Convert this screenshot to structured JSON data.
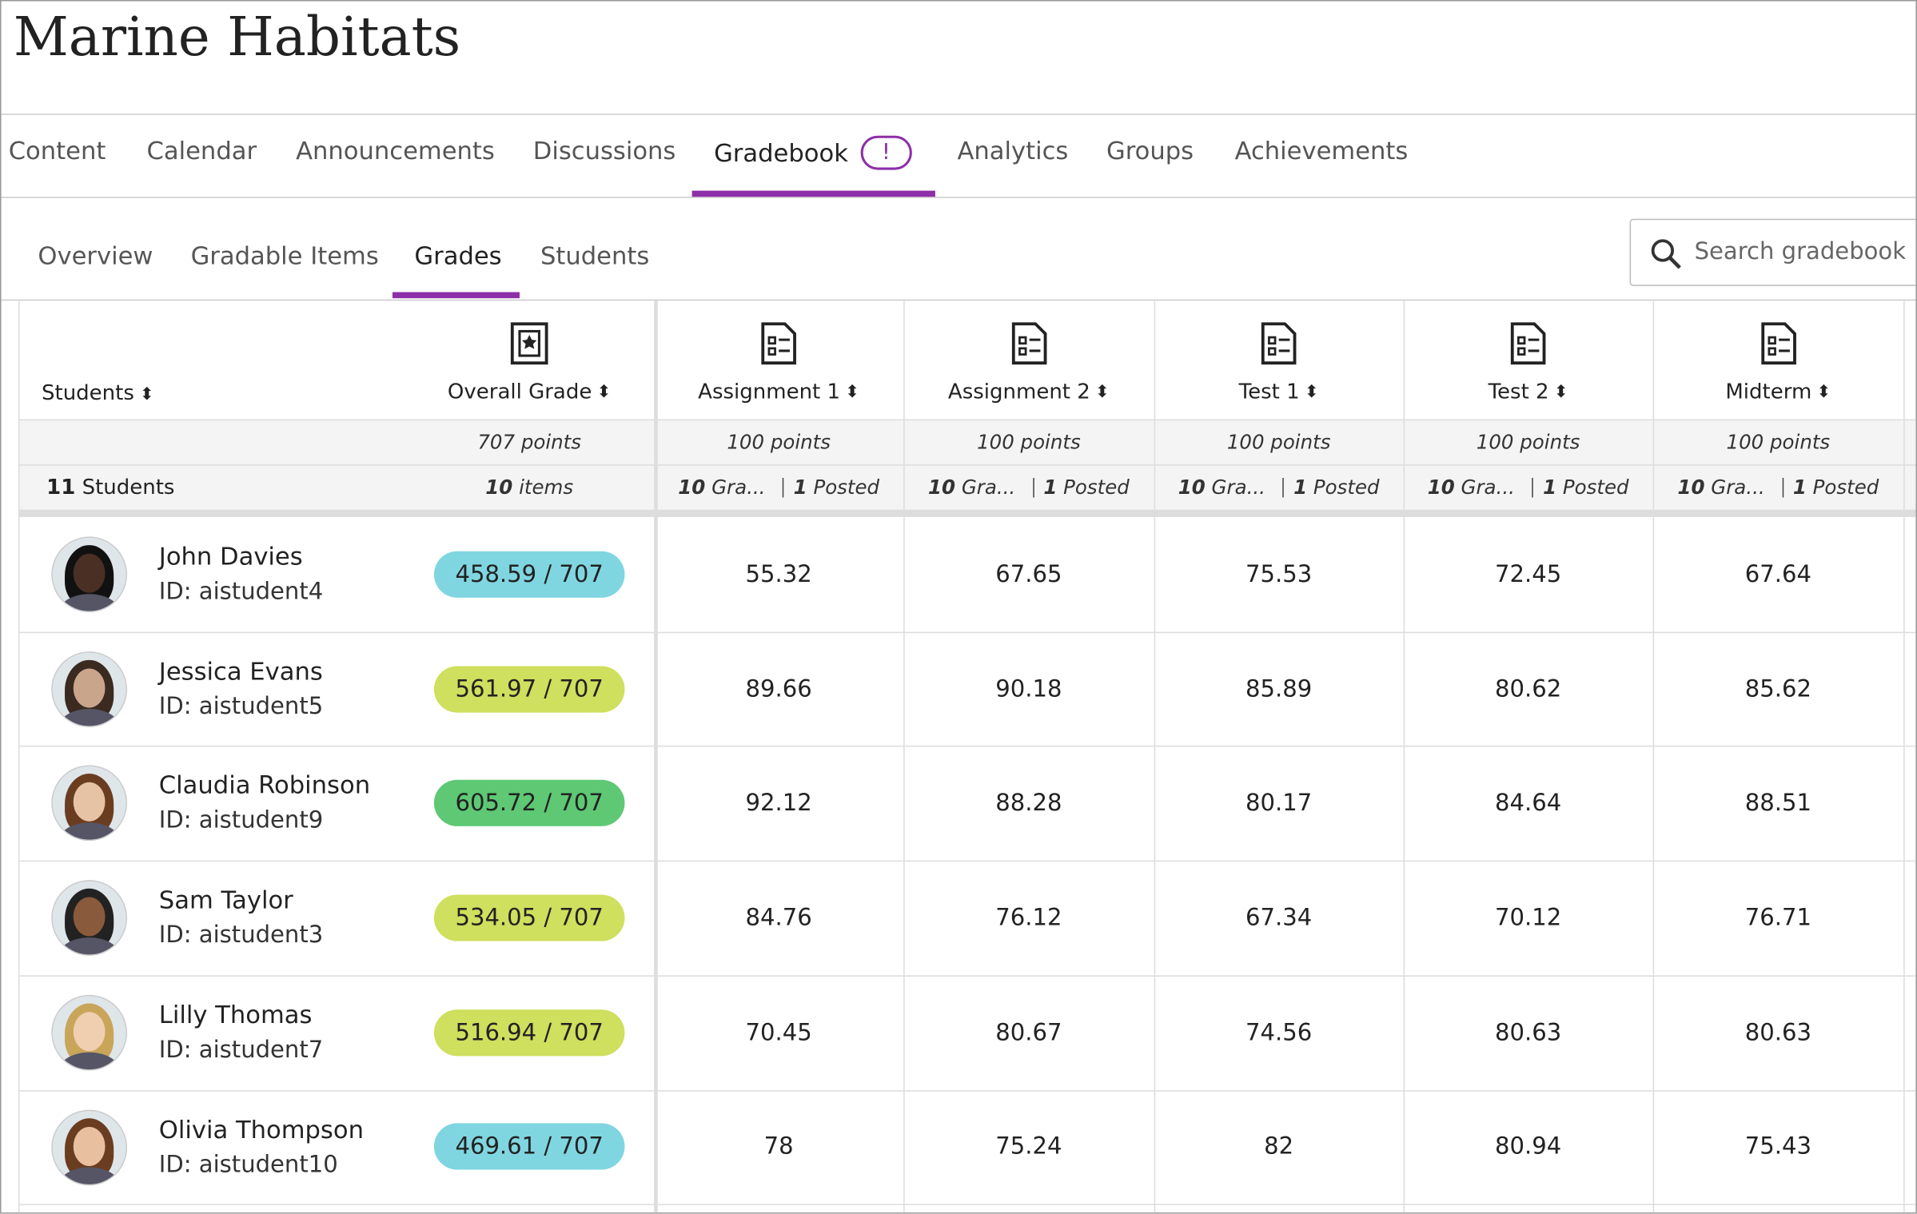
{
  "header": {
    "title": "Marine Habitats"
  },
  "nav": {
    "tabs": [
      "Content",
      "Calendar",
      "Announcements",
      "Discussions",
      "Gradebook",
      "Analytics",
      "Groups",
      "Achievements"
    ],
    "active": 4,
    "badge": "!"
  },
  "subnav": {
    "tabs": [
      "Overview",
      "Gradable Items",
      "Grades",
      "Students"
    ],
    "active": 2,
    "search_placeholder": "Search gradebook"
  },
  "table": {
    "columns": [
      "Students",
      "Overall Grade",
      "Assignment 1",
      "Assignment 2",
      "Test 1",
      "Test 2",
      "Midterm"
    ],
    "points": [
      "707 points",
      "100 points",
      "100 points",
      "100 points",
      "100 points",
      "100 points"
    ],
    "summary": {
      "students": {
        "count": "11",
        "text": "Students"
      },
      "overall": {
        "count": "10",
        "text": "items"
      },
      "items": [
        {
          "graded": "10",
          "graded_text": "Gra...",
          "posted": "1",
          "posted_text": "Posted"
        },
        {
          "graded": "10",
          "graded_text": "Gra...",
          "posted": "1",
          "posted_text": "Posted"
        },
        {
          "graded": "10",
          "graded_text": "Gra...",
          "posted": "1",
          "posted_text": "Posted"
        },
        {
          "graded": "10",
          "graded_text": "Gra...",
          "posted": "1",
          "posted_text": "Posted"
        },
        {
          "graded": "10",
          "graded_text": "Gra...",
          "posted": "1",
          "posted_text": "Posted"
        }
      ]
    },
    "rows": [
      {
        "name": "John Davies",
        "id": "ID: aistudent4",
        "overall": "458.59 / 707",
        "color": "#80d6e0",
        "scores": [
          "55.32",
          "67.65",
          "75.53",
          "72.45",
          "67.64"
        ]
      },
      {
        "name": "Jessica Evans",
        "id": "ID: aistudent5",
        "overall": "561.97 / 707",
        "color": "#cfdf5e",
        "scores": [
          "89.66",
          "90.18",
          "85.89",
          "80.62",
          "85.62"
        ]
      },
      {
        "name": "Claudia Robinson",
        "id": "ID: aistudent9",
        "overall": "605.72 / 707",
        "color": "#5ec874",
        "scores": [
          "92.12",
          "88.28",
          "80.17",
          "84.64",
          "88.51"
        ]
      },
      {
        "name": "Sam Taylor",
        "id": "ID: aistudent3",
        "overall": "534.05 / 707",
        "color": "#cfdf5e",
        "scores": [
          "84.76",
          "76.12",
          "67.34",
          "70.12",
          "76.71"
        ]
      },
      {
        "name": "Lilly Thomas",
        "id": "ID: aistudent7",
        "overall": "516.94 / 707",
        "color": "#cfdf5e",
        "scores": [
          "70.45",
          "80.67",
          "74.56",
          "80.63",
          "80.63"
        ]
      },
      {
        "name": "Olivia Thompson",
        "id": "ID: aistudent10",
        "overall": "469.61 / 707",
        "color": "#80d6e0",
        "scores": [
          "78",
          "75.24",
          "82",
          "80.94",
          "75.43"
        ]
      }
    ]
  }
}
